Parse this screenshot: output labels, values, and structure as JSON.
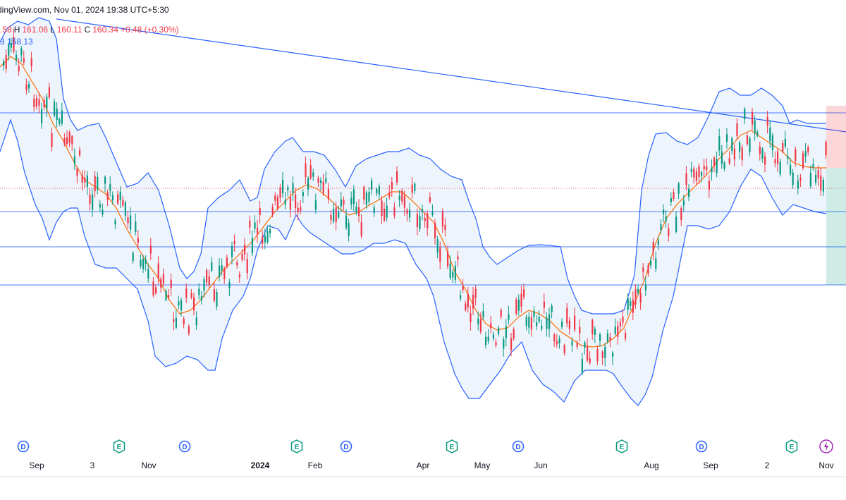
{
  "header": {
    "source": "dingView.com, Nov 01, 2024 19:38 UTC+5:30"
  },
  "ohlc": {
    "o_tail": ".58",
    "h_label": "H",
    "h": "161.06",
    "l_label": "L",
    "l": "160.11",
    "c_label": "C",
    "c": "160.34",
    "change": "+0.48 (+0.30%)"
  },
  "bb": {
    "value_a": "3",
    "value_b": "158.13"
  },
  "colors": {
    "up": "#089981",
    "down": "#f23645",
    "band": "#2962ff",
    "basis": "#ff6d00",
    "band_fill": "#eaf2fc",
    "hline": "#2962ff",
    "ev_dividend": "#2962ff",
    "ev_earnings": "#089981",
    "ev_split": "#9c27b0"
  },
  "chart_data": {
    "type": "candlestick",
    "y_range_px_note": "",
    "series": [
      {
        "name": "",
        "values": []
      }
    ],
    "x_ticks": [
      {
        "label": "Sep",
        "bold": false
      },
      {
        "label": "3",
        "bold": false
      },
      {
        "label": "Nov",
        "bold": false
      },
      {
        "label": "2024",
        "bold": true
      },
      {
        "label": "Feb",
        "bold": false
      },
      {
        "label": "Apr",
        "bold": false
      },
      {
        "label": "May",
        "bold": false
      },
      {
        "label": "Jun",
        "bold": false
      },
      {
        "label": "Aug",
        "bold": false
      },
      {
        "label": "Sep",
        "bold": false
      },
      {
        "label": "2",
        "bold": false
      },
      {
        "label": "Nov",
        "bold": false
      }
    ],
    "events": [
      {
        "kind": "D",
        "icon": "dividend-icon"
      },
      {
        "kind": "E",
        "icon": "earnings-icon"
      },
      {
        "kind": "D",
        "icon": "dividend-icon"
      },
      {
        "kind": "E",
        "icon": "earnings-icon"
      },
      {
        "kind": "D",
        "icon": "dividend-icon"
      },
      {
        "kind": "E",
        "icon": "earnings-icon"
      },
      {
        "kind": "D",
        "icon": "dividend-icon"
      },
      {
        "kind": "E",
        "icon": "earnings-icon"
      },
      {
        "kind": "D",
        "icon": "dividend-icon"
      },
      {
        "kind": "E",
        "icon": "earnings-icon"
      },
      {
        "kind": "split",
        "icon": "lightning-icon"
      }
    ],
    "horizontal_levels": 4,
    "trendline": true,
    "bollinger_bands": true,
    "last_price_dotted": true
  }
}
